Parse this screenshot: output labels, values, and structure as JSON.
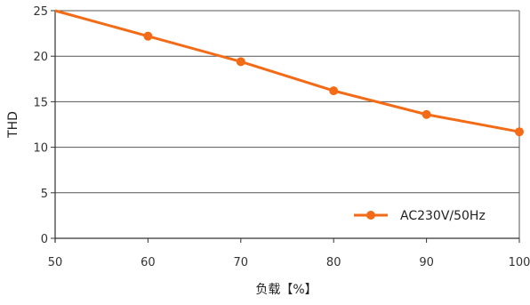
{
  "chart_data": {
    "type": "line",
    "title": "",
    "xlabel": "负载【%】",
    "ylabel": "THD",
    "x": [
      50,
      60,
      70,
      80,
      90,
      100
    ],
    "xlim": [
      50,
      100
    ],
    "ylim": [
      0,
      25
    ],
    "xticks": [
      50,
      60,
      70,
      80,
      90,
      100
    ],
    "yticks": [
      0,
      5,
      10,
      15,
      20,
      25
    ],
    "grid": {
      "horizontal": true,
      "vertical": false
    },
    "legend_position": "bottom-right",
    "series": [
      {
        "name": "AC230V/50Hz",
        "color": "#f36b16",
        "marker": "circle",
        "points": [
          {
            "x": 60,
            "y": 22.2
          },
          {
            "x": 70,
            "y": 19.4
          },
          {
            "x": 80,
            "y": 16.2
          },
          {
            "x": 90,
            "y": 13.6
          },
          {
            "x": 100,
            "y": 11.7
          }
        ],
        "line_starts_at": {
          "x": 50,
          "y": 25
        }
      }
    ]
  }
}
